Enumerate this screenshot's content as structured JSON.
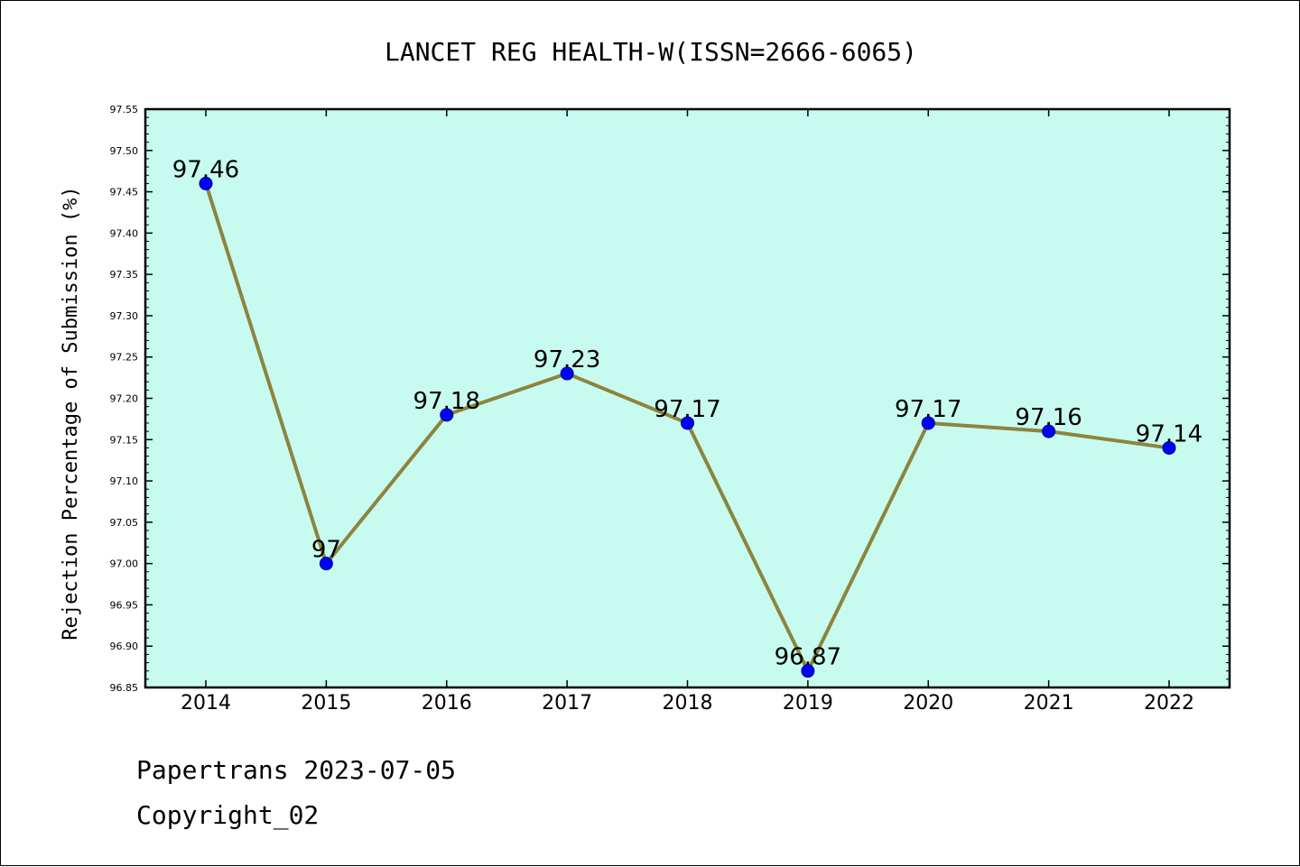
{
  "chart_data": {
    "type": "line",
    "title": "LANCET REG HEALTH-W(ISSN=2666-6065)",
    "xlabel": "",
    "ylabel": "Rejection Percentage of Submission (%)",
    "categories": [
      "2014",
      "2015",
      "2016",
      "2017",
      "2018",
      "2019",
      "2020",
      "2021",
      "2022"
    ],
    "values": [
      97.46,
      97,
      97.18,
      97.23,
      97.17,
      96.87,
      97.17,
      97.16,
      97.14
    ],
    "data_labels": [
      "97.46",
      "97",
      "97.18",
      "97.23",
      "97.17",
      "96.87",
      "97.17",
      "97.16",
      "97.14"
    ],
    "ylim": [
      96.85,
      97.55
    ],
    "yticks": [
      "96.85",
      "96.90",
      "96.95",
      "97.00",
      "97.05",
      "97.10",
      "97.15",
      "97.20",
      "97.25",
      "97.30",
      "97.35",
      "97.40",
      "97.45",
      "97.50",
      "97.55"
    ],
    "grid": false,
    "colors": {
      "plot_background": "#c8fbef",
      "line": "#8c843e",
      "marker": "#0000ff"
    }
  },
  "footer": {
    "line1": "Papertrans 2023-07-05",
    "line2": "Copyright_02"
  }
}
